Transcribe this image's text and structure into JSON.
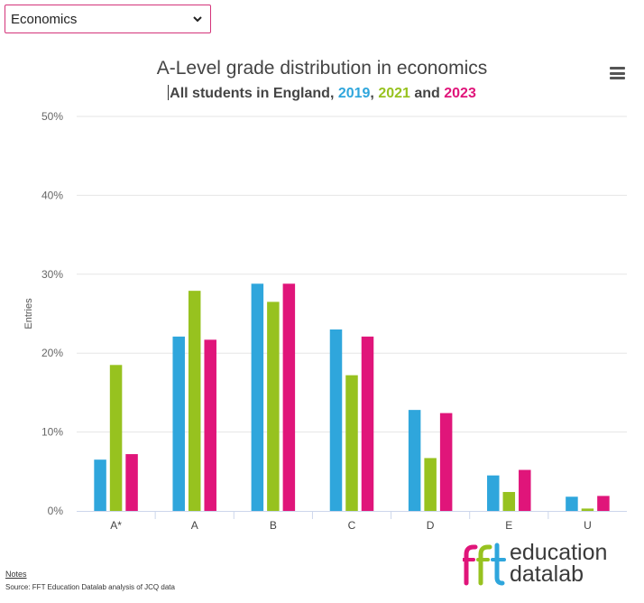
{
  "selector": {
    "value": "Economics"
  },
  "chart_data": {
    "type": "bar",
    "title": "A-Level grade distribution in economics",
    "subtitle": {
      "prefix": "All students in England, ",
      "year1": "2019",
      "sep1": ", ",
      "year2": "2021",
      "sep2": " and ",
      "year3": "2023"
    },
    "ylabel": "Entries",
    "xlabel": "",
    "categories": [
      "A*",
      "A",
      "B",
      "C",
      "D",
      "E",
      "U"
    ],
    "ylim": [
      0,
      50
    ],
    "yticks": [
      "0%",
      "10%",
      "20%",
      "30%",
      "40%",
      "50%"
    ],
    "grid": "horizontal",
    "legend": "none",
    "series": [
      {
        "name": "2019",
        "color": "#2fa6dc",
        "values": [
          6.5,
          22.1,
          28.8,
          23.0,
          12.8,
          4.5,
          1.8
        ]
      },
      {
        "name": "2021",
        "color": "#97c21f",
        "values": [
          18.5,
          27.9,
          26.5,
          17.2,
          6.7,
          2.4,
          0.3
        ]
      },
      {
        "name": "2023",
        "color": "#e0157a",
        "values": [
          7.2,
          21.7,
          28.8,
          22.1,
          12.4,
          5.2,
          1.9
        ]
      }
    ]
  },
  "footer": {
    "notes": "Notes",
    "source": "Source: FFT Education Datalab analysis of JCQ data"
  },
  "logo": {
    "line1": "education",
    "line2": "datalab",
    "colors": [
      "#e0157a",
      "#97c21f",
      "#2fa6dc"
    ]
  }
}
